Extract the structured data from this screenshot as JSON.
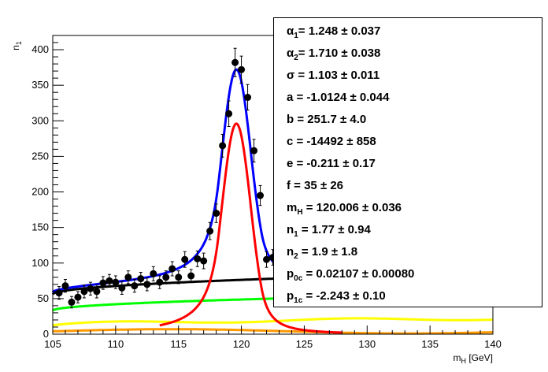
{
  "chart_data": {
    "type": "scatter",
    "title": "",
    "xlabel": "m_H [GeV]",
    "ylabel": "n_1",
    "xlim": [
      105,
      140
    ],
    "ylim": [
      0,
      420
    ],
    "x_ticks": [
      "105",
      "110",
      "115",
      "120",
      "125",
      "130",
      "135",
      "140"
    ],
    "y_ticks": [
      "0",
      "50",
      "100",
      "150",
      "200",
      "250",
      "300",
      "350",
      "400"
    ],
    "grid": false,
    "legend": "none",
    "data_points": [
      {
        "x": 105.5,
        "y": 58,
        "err": 9
      },
      {
        "x": 106.0,
        "y": 68,
        "err": 9
      },
      {
        "x": 106.5,
        "y": 45,
        "err": 8
      },
      {
        "x": 107.0,
        "y": 52,
        "err": 8
      },
      {
        "x": 107.5,
        "y": 60,
        "err": 9
      },
      {
        "x": 108.0,
        "y": 64,
        "err": 9
      },
      {
        "x": 108.5,
        "y": 60,
        "err": 9
      },
      {
        "x": 109.0,
        "y": 72,
        "err": 9
      },
      {
        "x": 109.5,
        "y": 75,
        "err": 9
      },
      {
        "x": 110.0,
        "y": 73,
        "err": 9
      },
      {
        "x": 110.5,
        "y": 65,
        "err": 9
      },
      {
        "x": 111.0,
        "y": 80,
        "err": 9
      },
      {
        "x": 111.5,
        "y": 68,
        "err": 9
      },
      {
        "x": 112.0,
        "y": 78,
        "err": 9
      },
      {
        "x": 112.5,
        "y": 70,
        "err": 9
      },
      {
        "x": 113.0,
        "y": 85,
        "err": 10
      },
      {
        "x": 113.5,
        "y": 73,
        "err": 9
      },
      {
        "x": 114.0,
        "y": 80,
        "err": 9
      },
      {
        "x": 114.5,
        "y": 92,
        "err": 10
      },
      {
        "x": 115.0,
        "y": 80,
        "err": 9
      },
      {
        "x": 115.5,
        "y": 105,
        "err": 11
      },
      {
        "x": 116.0,
        "y": 82,
        "err": 9
      },
      {
        "x": 116.5,
        "y": 106,
        "err": 11
      },
      {
        "x": 117.0,
        "y": 103,
        "err": 11
      },
      {
        "x": 117.5,
        "y": 145,
        "err": 12
      },
      {
        "x": 118.0,
        "y": 170,
        "err": 13
      },
      {
        "x": 118.5,
        "y": 265,
        "err": 16
      },
      {
        "x": 119.0,
        "y": 310,
        "err": 18
      },
      {
        "x": 119.5,
        "y": 382,
        "err": 20
      },
      {
        "x": 120.0,
        "y": 372,
        "err": 19
      },
      {
        "x": 120.5,
        "y": 333,
        "err": 18
      },
      {
        "x": 121.0,
        "y": 258,
        "err": 16
      },
      {
        "x": 121.5,
        "y": 195,
        "err": 14
      },
      {
        "x": 122.0,
        "y": 105,
        "err": 11
      },
      {
        "x": 122.5,
        "y": 108,
        "err": 11
      }
    ],
    "series": [
      {
        "name": "",
        "color": "#0000ff"
      },
      {
        "name": "",
        "color": "#ff0000"
      },
      {
        "name": "",
        "color": "#000000"
      },
      {
        "name": "",
        "color": "#00ff00"
      },
      {
        "name": "",
        "color": "#ffff00"
      },
      {
        "name": "",
        "color": "#ff9900"
      }
    ]
  },
  "stats": {
    "alpha1": {
      "sym": "α",
      "sub": "1",
      "value": "=  1.248  ± 0.037"
    },
    "alpha2": {
      "sym": "α",
      "sub": "2",
      "value": "=  1.710  ± 0.038"
    },
    "sigma": {
      "label": "σ =  1.103  ± 0.011"
    },
    "a": {
      "label": "a = -1.0124  ± 0.044"
    },
    "b": {
      "label": "b =  251.7  ± 4.0"
    },
    "c": {
      "label": "c = -14492  ± 858"
    },
    "e": {
      "label": "e = -0.211 ± 0.17"
    },
    "f": {
      "label": "f =  35  ± 26"
    },
    "mH": {
      "sym": "m",
      "sub": "H",
      "value": " =  120.006  ± 0.036"
    },
    "n1": {
      "sym": "n",
      "sub": "1",
      "value": " =  1.77  ± 0.94"
    },
    "n2": {
      "sym": "n",
      "sub": "2",
      "value": " =  1.9  ± 1.8"
    },
    "p0c": {
      "sym": "p",
      "sub": "0c",
      "value": " =  0.02107  ± 0.00080"
    },
    "p1c": {
      "sym": "p",
      "sub": "1c",
      "value": " = -2.243  ± 0.10"
    }
  }
}
